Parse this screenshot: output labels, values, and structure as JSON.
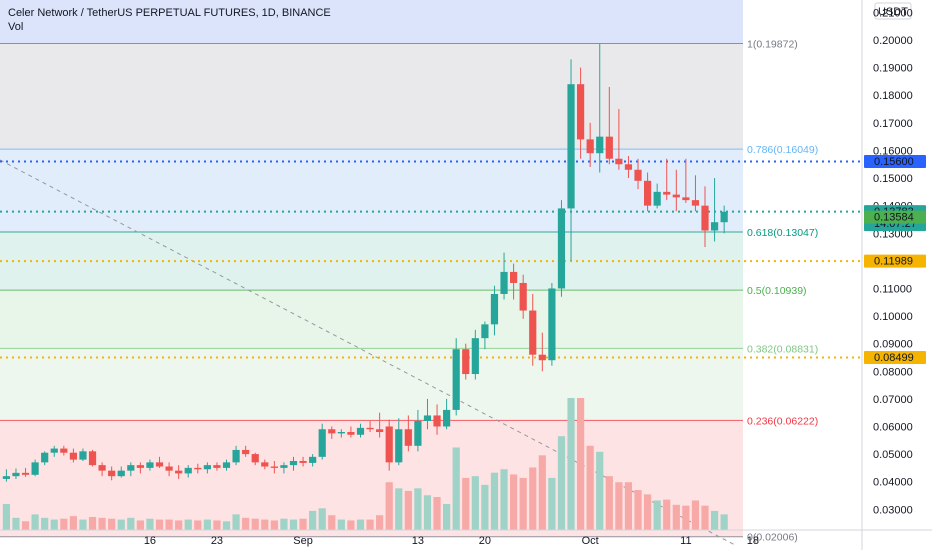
{
  "legend": {
    "title": "Celer Network / TetherUS PERPETUAL FUTURES, 1D, BINANCE",
    "volume_label": "Vol"
  },
  "price_axis": {
    "currency": "USDT",
    "ticks": [
      "0.21000",
      "0.20000",
      "0.19000",
      "0.18000",
      "0.17000",
      "0.16000",
      "0.15000",
      "0.14000",
      "0.13000",
      "0.12000",
      "0.11000",
      "0.10000",
      "0.09000",
      "0.08000",
      "0.07000",
      "0.06000",
      "0.05000",
      "0.04000",
      "0.03000"
    ]
  },
  "time_axis": {
    "ticks": [
      {
        "label": "16",
        "day": 16
      },
      {
        "label": "23",
        "day": 23
      },
      {
        "label": "Sep",
        "day": 32
      },
      {
        "label": "13",
        "day": 44
      },
      {
        "label": "20",
        "day": 51
      },
      {
        "label": "Oct",
        "day": 62
      },
      {
        "label": "11",
        "day": 72
      },
      {
        "label": "18",
        "day": 79
      }
    ]
  },
  "badges": [
    {
      "text": "0.15600",
      "price": 0.156,
      "color": "#2962ff"
    },
    {
      "text": "0.13783",
      "price": 0.13783,
      "color": "#26a69a",
      "countdown": "14:07:27"
    },
    {
      "text": "0.13584",
      "price": 0.13584,
      "color": "#4caf50"
    },
    {
      "text": "0.11989",
      "price": 0.11989,
      "color": "#f5b400"
    },
    {
      "text": "0.08499",
      "price": 0.08499,
      "color": "#f5b400"
    }
  ],
  "fib_levels": [
    {
      "label": "1(0.19872)",
      "price": 0.19872,
      "color": "#787b86",
      "fill": "#e9e9ec"
    },
    {
      "label": "0.786(0.16049)",
      "price": 0.16049,
      "color": "#64b5f6",
      "fill": "#e1edfb"
    },
    {
      "label": "0.618(0.13047)",
      "price": 0.13047,
      "color": "#089981",
      "fill": "#e0f2ee"
    },
    {
      "label": "0.5(0.10939)",
      "price": 0.10939,
      "color": "#4caf50",
      "fill": "#e8f5e9"
    },
    {
      "label": "0.382(0.08831)",
      "price": 0.08831,
      "color": "#81c784",
      "fill": "#eef7ee"
    },
    {
      "label": "0.236(0.06222)",
      "price": 0.06222,
      "color": "#f23645",
      "fill": "#fde3e3"
    },
    {
      "label": "0(0.02006)",
      "price": 0.02006,
      "color": "#787b86",
      "fill": ""
    }
  ],
  "fib_top_fill": "#dbe4fb",
  "horizontal_lines": [
    {
      "price": 0.156,
      "color": "#2962ff"
    },
    {
      "price": 0.13783,
      "color": "#26a69a"
    },
    {
      "price": 0.11989,
      "color": "#f5b400"
    },
    {
      "price": 0.08499,
      "color": "#f5b400"
    }
  ],
  "colors": {
    "up": "#26a69a",
    "down": "#ef5350",
    "up_vol": "#9fd3c7",
    "down_vol": "#f7a9a7"
  },
  "chart_data": {
    "type": "candlestick",
    "x_unit": "day index (Aug 1 = 1)",
    "ylim": [
      0.0225,
      0.2145
    ],
    "candles": [
      {
        "d": 1,
        "o": 0.041,
        "h": 0.0445,
        "l": 0.04,
        "c": 0.042,
        "v": 0.3
      },
      {
        "d": 2,
        "o": 0.042,
        "h": 0.0448,
        "l": 0.041,
        "c": 0.0432,
        "v": 0.14
      },
      {
        "d": 3,
        "o": 0.0432,
        "h": 0.045,
        "l": 0.0418,
        "c": 0.0425,
        "v": 0.1
      },
      {
        "d": 4,
        "o": 0.0425,
        "h": 0.048,
        "l": 0.042,
        "c": 0.047,
        "v": 0.18
      },
      {
        "d": 5,
        "o": 0.047,
        "h": 0.051,
        "l": 0.046,
        "c": 0.0505,
        "v": 0.14
      },
      {
        "d": 6,
        "o": 0.0505,
        "h": 0.053,
        "l": 0.049,
        "c": 0.052,
        "v": 0.12
      },
      {
        "d": 7,
        "o": 0.052,
        "h": 0.053,
        "l": 0.0495,
        "c": 0.0505,
        "v": 0.13
      },
      {
        "d": 8,
        "o": 0.0505,
        "h": 0.052,
        "l": 0.047,
        "c": 0.048,
        "v": 0.16
      },
      {
        "d": 9,
        "o": 0.048,
        "h": 0.052,
        "l": 0.0475,
        "c": 0.051,
        "v": 0.12
      },
      {
        "d": 10,
        "o": 0.051,
        "h": 0.0515,
        "l": 0.0455,
        "c": 0.046,
        "v": 0.15
      },
      {
        "d": 11,
        "o": 0.046,
        "h": 0.047,
        "l": 0.042,
        "c": 0.044,
        "v": 0.14
      },
      {
        "d": 12,
        "o": 0.044,
        "h": 0.0455,
        "l": 0.0405,
        "c": 0.042,
        "v": 0.13
      },
      {
        "d": 13,
        "o": 0.042,
        "h": 0.0455,
        "l": 0.0415,
        "c": 0.044,
        "v": 0.12
      },
      {
        "d": 14,
        "o": 0.044,
        "h": 0.047,
        "l": 0.042,
        "c": 0.046,
        "v": 0.14
      },
      {
        "d": 15,
        "o": 0.046,
        "h": 0.047,
        "l": 0.043,
        "c": 0.045,
        "v": 0.11
      },
      {
        "d": 16,
        "o": 0.045,
        "h": 0.048,
        "l": 0.044,
        "c": 0.047,
        "v": 0.13
      },
      {
        "d": 17,
        "o": 0.047,
        "h": 0.049,
        "l": 0.045,
        "c": 0.0455,
        "v": 0.12
      },
      {
        "d": 18,
        "o": 0.0455,
        "h": 0.047,
        "l": 0.042,
        "c": 0.044,
        "v": 0.12
      },
      {
        "d": 19,
        "o": 0.044,
        "h": 0.046,
        "l": 0.041,
        "c": 0.043,
        "v": 0.11
      },
      {
        "d": 20,
        "o": 0.043,
        "h": 0.046,
        "l": 0.0415,
        "c": 0.045,
        "v": 0.12
      },
      {
        "d": 21,
        "o": 0.045,
        "h": 0.0465,
        "l": 0.043,
        "c": 0.0445,
        "v": 0.11
      },
      {
        "d": 22,
        "o": 0.0445,
        "h": 0.047,
        "l": 0.043,
        "c": 0.046,
        "v": 0.12
      },
      {
        "d": 23,
        "o": 0.046,
        "h": 0.047,
        "l": 0.044,
        "c": 0.045,
        "v": 0.11
      },
      {
        "d": 24,
        "o": 0.045,
        "h": 0.048,
        "l": 0.044,
        "c": 0.047,
        "v": 0.1
      },
      {
        "d": 25,
        "o": 0.047,
        "h": 0.053,
        "l": 0.046,
        "c": 0.0515,
        "v": 0.18
      },
      {
        "d": 26,
        "o": 0.0515,
        "h": 0.053,
        "l": 0.049,
        "c": 0.05,
        "v": 0.14
      },
      {
        "d": 27,
        "o": 0.05,
        "h": 0.0505,
        "l": 0.046,
        "c": 0.047,
        "v": 0.13
      },
      {
        "d": 28,
        "o": 0.047,
        "h": 0.048,
        "l": 0.0445,
        "c": 0.0455,
        "v": 0.12
      },
      {
        "d": 29,
        "o": 0.0455,
        "h": 0.0475,
        "l": 0.043,
        "c": 0.045,
        "v": 0.11
      },
      {
        "d": 30,
        "o": 0.045,
        "h": 0.047,
        "l": 0.043,
        "c": 0.046,
        "v": 0.13
      },
      {
        "d": 31,
        "o": 0.046,
        "h": 0.049,
        "l": 0.044,
        "c": 0.0475,
        "v": 0.12
      },
      {
        "d": 32,
        "o": 0.0475,
        "h": 0.049,
        "l": 0.0455,
        "c": 0.0468,
        "v": 0.13
      },
      {
        "d": 33,
        "o": 0.0468,
        "h": 0.05,
        "l": 0.0455,
        "c": 0.049,
        "v": 0.22
      },
      {
        "d": 34,
        "o": 0.049,
        "h": 0.061,
        "l": 0.048,
        "c": 0.059,
        "v": 0.25
      },
      {
        "d": 35,
        "o": 0.059,
        "h": 0.06,
        "l": 0.0555,
        "c": 0.0575,
        "v": 0.17
      },
      {
        "d": 36,
        "o": 0.0575,
        "h": 0.059,
        "l": 0.056,
        "c": 0.058,
        "v": 0.12
      },
      {
        "d": 37,
        "o": 0.058,
        "h": 0.06,
        "l": 0.056,
        "c": 0.057,
        "v": 0.11
      },
      {
        "d": 38,
        "o": 0.057,
        "h": 0.061,
        "l": 0.056,
        "c": 0.0595,
        "v": 0.12
      },
      {
        "d": 39,
        "o": 0.0595,
        "h": 0.062,
        "l": 0.058,
        "c": 0.059,
        "v": 0.12
      },
      {
        "d": 40,
        "o": 0.059,
        "h": 0.065,
        "l": 0.056,
        "c": 0.058,
        "v": 0.17
      },
      {
        "d": 41,
        "o": 0.06,
        "h": 0.0625,
        "l": 0.044,
        "c": 0.047,
        "v": 0.55
      },
      {
        "d": 42,
        "o": 0.047,
        "h": 0.063,
        "l": 0.046,
        "c": 0.059,
        "v": 0.48
      },
      {
        "d": 43,
        "o": 0.059,
        "h": 0.064,
        "l": 0.051,
        "c": 0.053,
        "v": 0.45
      },
      {
        "d": 44,
        "o": 0.053,
        "h": 0.066,
        "l": 0.051,
        "c": 0.062,
        "v": 0.48
      },
      {
        "d": 45,
        "o": 0.062,
        "h": 0.07,
        "l": 0.059,
        "c": 0.064,
        "v": 0.4
      },
      {
        "d": 46,
        "o": 0.064,
        "h": 0.068,
        "l": 0.057,
        "c": 0.06,
        "v": 0.38
      },
      {
        "d": 47,
        "o": 0.06,
        "h": 0.07,
        "l": 0.059,
        "c": 0.066,
        "v": 0.3
      },
      {
        "d": 48,
        "o": 0.066,
        "h": 0.092,
        "l": 0.064,
        "c": 0.088,
        "v": 0.95
      },
      {
        "d": 49,
        "o": 0.088,
        "h": 0.09,
        "l": 0.077,
        "c": 0.079,
        "v": 0.6
      },
      {
        "d": 50,
        "o": 0.079,
        "h": 0.095,
        "l": 0.077,
        "c": 0.092,
        "v": 0.62
      },
      {
        "d": 51,
        "o": 0.092,
        "h": 0.098,
        "l": 0.088,
        "c": 0.097,
        "v": 0.52
      },
      {
        "d": 52,
        "o": 0.097,
        "h": 0.111,
        "l": 0.093,
        "c": 0.108,
        "v": 0.66
      },
      {
        "d": 53,
        "o": 0.108,
        "h": 0.123,
        "l": 0.106,
        "c": 0.116,
        "v": 0.7
      },
      {
        "d": 54,
        "o": 0.116,
        "h": 0.119,
        "l": 0.106,
        "c": 0.112,
        "v": 0.64
      },
      {
        "d": 55,
        "o": 0.112,
        "h": 0.115,
        "l": 0.099,
        "c": 0.102,
        "v": 0.6
      },
      {
        "d": 56,
        "o": 0.102,
        "h": 0.108,
        "l": 0.082,
        "c": 0.086,
        "v": 0.72
      },
      {
        "d": 57,
        "o": 0.086,
        "h": 0.094,
        "l": 0.08,
        "c": 0.084,
        "v": 0.86
      },
      {
        "d": 58,
        "o": 0.084,
        "h": 0.112,
        "l": 0.082,
        "c": 0.11,
        "v": 0.6
      },
      {
        "d": 59,
        "o": 0.11,
        "h": 0.142,
        "l": 0.107,
        "c": 0.139,
        "v": 1.08
      },
      {
        "d": 60,
        "o": 0.139,
        "h": 0.193,
        "l": 0.12,
        "c": 0.184,
        "v": 1.52
      },
      {
        "d": 61,
        "o": 0.184,
        "h": 0.19,
        "l": 0.157,
        "c": 0.164,
        "v": 1.52
      },
      {
        "d": 62,
        "o": 0.164,
        "h": 0.17,
        "l": 0.154,
        "c": 0.159,
        "v": 0.97
      },
      {
        "d": 63,
        "o": 0.159,
        "h": 0.1987,
        "l": 0.152,
        "c": 0.165,
        "v": 0.9
      },
      {
        "d": 64,
        "o": 0.165,
        "h": 0.183,
        "l": 0.155,
        "c": 0.157,
        "v": 0.62
      },
      {
        "d": 65,
        "o": 0.157,
        "h": 0.175,
        "l": 0.153,
        "c": 0.155,
        "v": 0.55
      },
      {
        "d": 66,
        "o": 0.155,
        "h": 0.158,
        "l": 0.15,
        "c": 0.153,
        "v": 0.55
      },
      {
        "d": 67,
        "o": 0.153,
        "h": 0.157,
        "l": 0.146,
        "c": 0.149,
        "v": 0.46
      },
      {
        "d": 68,
        "o": 0.149,
        "h": 0.152,
        "l": 0.138,
        "c": 0.14,
        "v": 0.41
      },
      {
        "d": 69,
        "o": 0.14,
        "h": 0.148,
        "l": 0.139,
        "c": 0.145,
        "v": 0.34
      },
      {
        "d": 70,
        "o": 0.145,
        "h": 0.157,
        "l": 0.142,
        "c": 0.144,
        "v": 0.35
      },
      {
        "d": 71,
        "o": 0.144,
        "h": 0.153,
        "l": 0.138,
        "c": 0.143,
        "v": 0.29
      },
      {
        "d": 72,
        "o": 0.143,
        "h": 0.157,
        "l": 0.141,
        "c": 0.142,
        "v": 0.28
      },
      {
        "d": 73,
        "o": 0.142,
        "h": 0.151,
        "l": 0.138,
        "c": 0.14,
        "v": 0.34
      },
      {
        "d": 74,
        "o": 0.14,
        "h": 0.147,
        "l": 0.125,
        "c": 0.131,
        "v": 0.28
      },
      {
        "d": 75,
        "o": 0.131,
        "h": 0.15,
        "l": 0.127,
        "c": 0.134,
        "v": 0.22
      },
      {
        "d": 76,
        "o": 0.134,
        "h": 0.14,
        "l": 0.13,
        "c": 0.1378,
        "v": 0.18
      }
    ]
  }
}
